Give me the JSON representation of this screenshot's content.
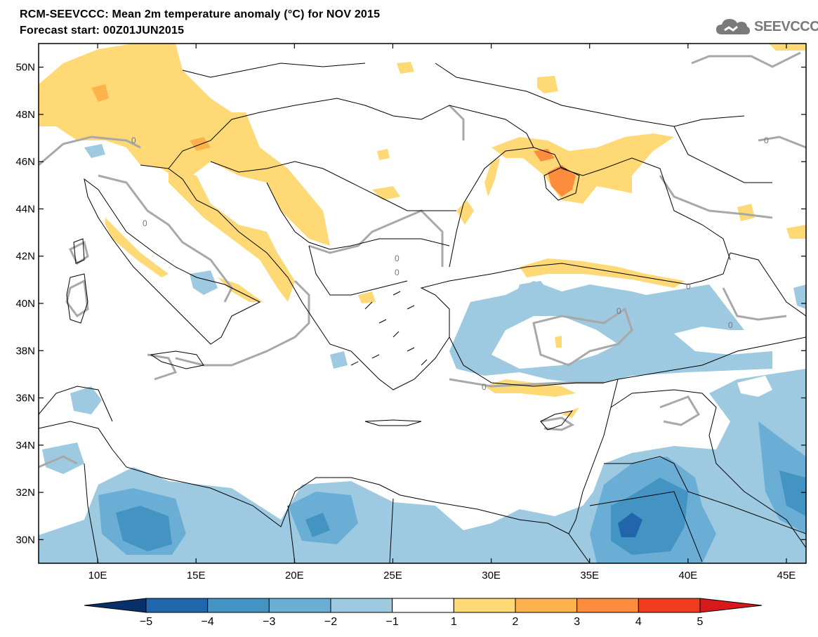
{
  "header": {
    "title_line1": "RCM-SEEVCCC: Mean 2m temperature anomaly (°C) for NOV 2015",
    "title_line2": "Forecast start: 00Z01JUN2015",
    "logo_text": "SEEVCCC"
  },
  "map": {
    "lon_range": [
      7,
      46
    ],
    "lat_range": [
      29,
      51
    ],
    "lat_ticks": [
      {
        "value": 50,
        "label": "50N"
      },
      {
        "value": 48,
        "label": "48N"
      },
      {
        "value": 46,
        "label": "46N"
      },
      {
        "value": 44,
        "label": "44N"
      },
      {
        "value": 42,
        "label": "42N"
      },
      {
        "value": 40,
        "label": "40N"
      },
      {
        "value": 38,
        "label": "38N"
      },
      {
        "value": 36,
        "label": "36N"
      },
      {
        "value": 34,
        "label": "34N"
      },
      {
        "value": 32,
        "label": "32N"
      },
      {
        "value": 30,
        "label": "30N"
      }
    ],
    "lon_ticks": [
      {
        "value": 10,
        "label": "10E"
      },
      {
        "value": 15,
        "label": "15E"
      },
      {
        "value": 20,
        "label": "20E"
      },
      {
        "value": 25,
        "label": "25E"
      },
      {
        "value": 30,
        "label": "30E"
      },
      {
        "value": 35,
        "label": "35E"
      },
      {
        "value": 40,
        "label": "40E"
      },
      {
        "value": 45,
        "label": "45E"
      }
    ],
    "contour_label": "0"
  },
  "colorbar": {
    "labels": [
      "−5",
      "−4",
      "−3",
      "−2",
      "−1",
      "1",
      "2",
      "3",
      "4",
      "5"
    ],
    "colors": [
      "#08306b",
      "#2166ac",
      "#4393c3",
      "#6aaed6",
      "#9ecae1",
      "#ffffff",
      "#fed976",
      "#fdb24c",
      "#fd8d3c",
      "#f03b20",
      "#d7191c"
    ]
  }
}
